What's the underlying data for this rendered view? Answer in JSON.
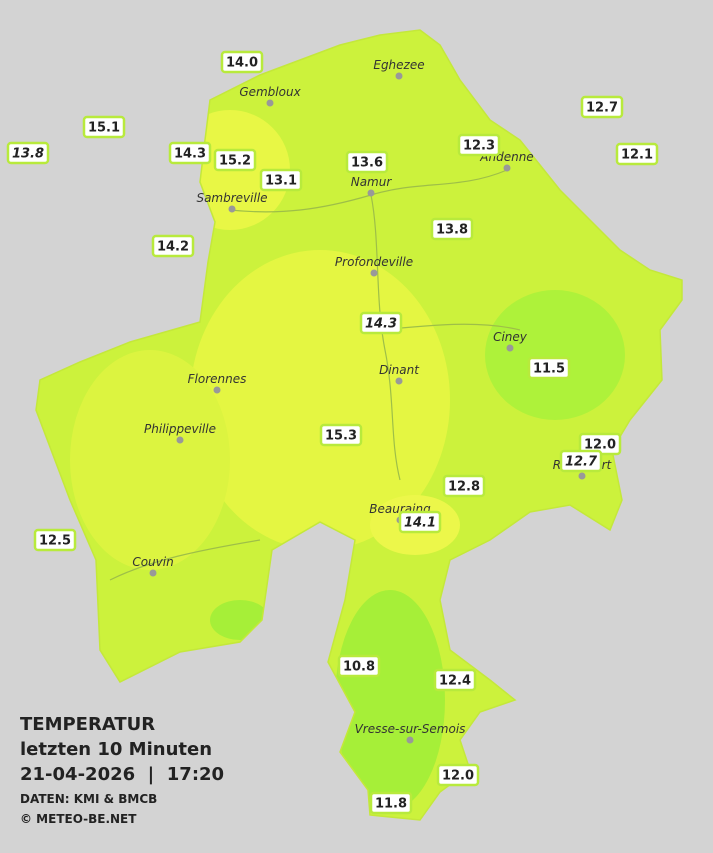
{
  "legend": {
    "title": "TEMPERATUR",
    "period": "letzten 10 Minuten",
    "datetime": "21-04-2026  |  17:20",
    "source": "DATEN: KMI & BMCB",
    "copyright": "© METEO-BE.NET"
  },
  "cities": [
    "Eghezee",
    "Gembloux",
    "Andenne",
    "Namur",
    "Sambreville",
    "Profondeville",
    "Ciney",
    "Florennes",
    "Dinant",
    "Philippeville",
    "Rochefort",
    "Beauraing",
    "Couvin",
    "Vresse-sur-Semois"
  ],
  "stations": [
    {
      "value": "14.0"
    },
    {
      "value": "15.1"
    },
    {
      "value": "13.8",
      "italic": true
    },
    {
      "value": "14.3"
    },
    {
      "value": "15.2"
    },
    {
      "value": "13.1"
    },
    {
      "value": "13.6"
    },
    {
      "value": "12.3"
    },
    {
      "value": "12.7"
    },
    {
      "value": "12.1"
    },
    {
      "value": "13.8"
    },
    {
      "value": "14.2"
    },
    {
      "value": "14.3",
      "italic": true
    },
    {
      "value": "11.5"
    },
    {
      "value": "15.3"
    },
    {
      "value": "12.0"
    },
    {
      "value": "12.7",
      "italic": true
    },
    {
      "value": "12.8"
    },
    {
      "value": "14.1",
      "italic": true
    },
    {
      "value": "12.5"
    },
    {
      "value": "10.8"
    },
    {
      "value": "12.4"
    },
    {
      "value": "12.0"
    },
    {
      "value": "11.8"
    }
  ]
}
